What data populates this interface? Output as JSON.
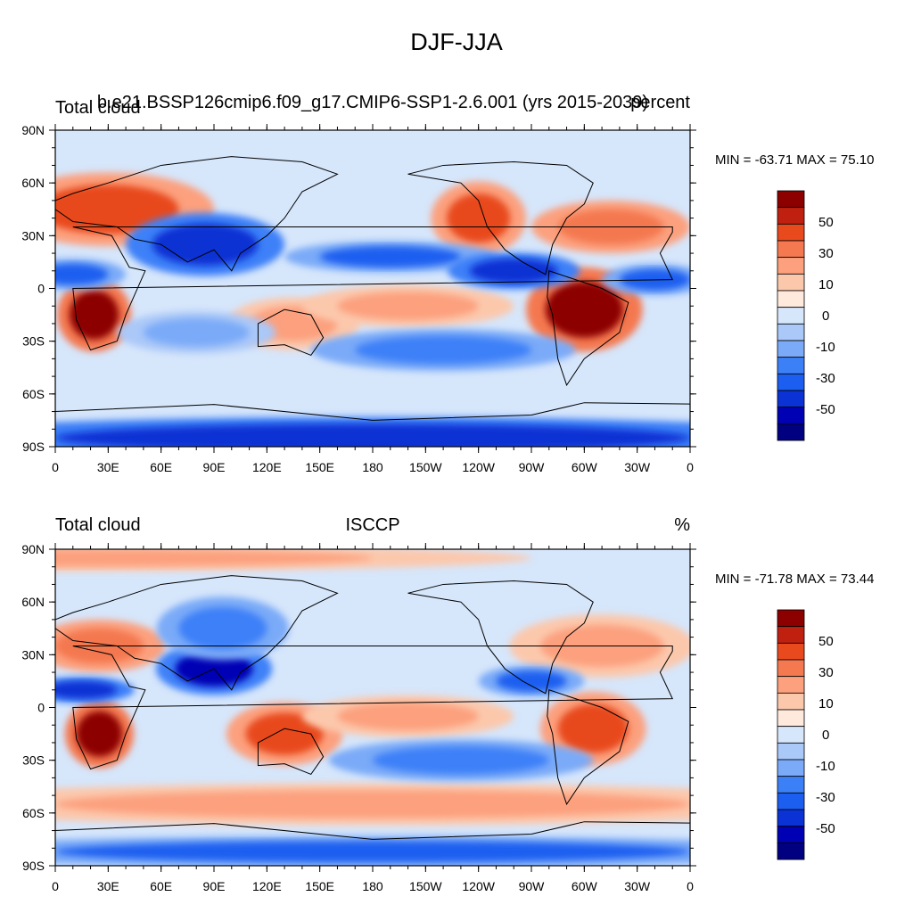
{
  "main_title": "DJF-JJA",
  "colors": {
    "levels": [
      -60,
      -50,
      -40,
      -30,
      -20,
      -10,
      -5,
      0,
      5,
      10,
      20,
      30,
      40,
      50,
      60
    ],
    "fills": [
      "#000080",
      "#0000b4",
      "#0a32d4",
      "#1c5ef0",
      "#3c80f8",
      "#7aaaf8",
      "#aac8f8",
      "#d6e6fb",
      "#ffe8dc",
      "#fcc8ac",
      "#fca07e",
      "#f47850",
      "#e84a1e",
      "#c02010",
      "#8c0000"
    ]
  },
  "panels": [
    {
      "left_title": "Total cloud",
      "center_title": "b.e21.BSSP126cmip6.f09_g17.CMIP6-SSP1-2.6.001 (yrs 2015-2039)",
      "right_title": "percent",
      "minmax": "MIN = -63.71 MAX =  75.10",
      "colorbar_labels": [
        "50",
        "30",
        "10",
        "0",
        "-10",
        "-30",
        "-50"
      ]
    },
    {
      "left_title": "Total cloud",
      "center_title": "ISCCP",
      "right_title": "%",
      "minmax": "MIN = -71.78 MAX =  73.44",
      "colorbar_labels": [
        "50",
        "30",
        "10",
        "0",
        "-10",
        "-30",
        "-50"
      ]
    }
  ],
  "chart_data": [
    {
      "type": "heatmap",
      "title": "DJF-JJA",
      "field": "Total cloud",
      "units": "percent",
      "source": "b.e21.BSSP126cmip6.f09_g17.CMIP6-SSP1-2.6.001 (yrs 2015-2039)",
      "min": -63.71,
      "max": 75.1,
      "x_ticks": [
        "0",
        "30E",
        "60E",
        "90E",
        "120E",
        "150E",
        "180",
        "150W",
        "120W",
        "90W",
        "60W",
        "30W",
        "0"
      ],
      "y_ticks": [
        "90N",
        "60N",
        "30N",
        "0",
        "30S",
        "60S",
        "90S"
      ],
      "colorbar_levels": [
        -60,
        -50,
        -40,
        -30,
        -20,
        -10,
        -5,
        0,
        5,
        10,
        20,
        30,
        40,
        50,
        60
      ],
      "features": [
        {
          "lon": 30,
          "lat": 45,
          "value": 40,
          "w": 40,
          "h": 14
        },
        {
          "lon": 22,
          "lat": -15,
          "value": 60,
          "w": 14,
          "h": 14
        },
        {
          "lon": 300,
          "lat": -12,
          "value": 60,
          "w": 22,
          "h": 16
        },
        {
          "lon": 240,
          "lat": 40,
          "value": 40,
          "w": 18,
          "h": 14
        },
        {
          "lon": 315,
          "lat": 35,
          "value": 25,
          "w": 30,
          "h": 10
        },
        {
          "lon": 135,
          "lat": -20,
          "value": 20,
          "w": 25,
          "h": 10
        },
        {
          "lon": 200,
          "lat": -10,
          "value": 15,
          "w": 40,
          "h": 8
        },
        {
          "lon": 85,
          "lat": 25,
          "value": -40,
          "w": 30,
          "h": 12
        },
        {
          "lon": 190,
          "lat": 18,
          "value": -30,
          "w": 40,
          "h": 6
        },
        {
          "lon": 260,
          "lat": 10,
          "value": -40,
          "w": 25,
          "h": 7
        },
        {
          "lon": 10,
          "lat": 8,
          "value": -35,
          "w": 20,
          "h": 6
        },
        {
          "lon": 340,
          "lat": 5,
          "value": -30,
          "w": 20,
          "h": 6
        },
        {
          "lon": 180,
          "lat": -85,
          "value": -40,
          "w": 180,
          "h": 8
        },
        {
          "lon": 220,
          "lat": -35,
          "value": -20,
          "w": 50,
          "h": 8
        },
        {
          "lon": 80,
          "lat": -25,
          "value": -15,
          "w": 30,
          "h": 8
        }
      ]
    },
    {
      "type": "heatmap",
      "title": "DJF-JJA",
      "field": "Total cloud",
      "units": "%",
      "source": "ISCCP",
      "min": -71.78,
      "max": 73.44,
      "x_ticks": [
        "0",
        "30E",
        "60E",
        "90E",
        "120E",
        "150E",
        "180",
        "150W",
        "120W",
        "90W",
        "60W",
        "30W",
        "0"
      ],
      "y_ticks": [
        "90N",
        "60N",
        "30N",
        "0",
        "30S",
        "60S",
        "90S"
      ],
      "colorbar_levels": [
        -60,
        -50,
        -40,
        -30,
        -20,
        -10,
        -5,
        0,
        5,
        10,
        20,
        30,
        40,
        50,
        60
      ],
      "features": [
        {
          "lon": 25,
          "lat": 35,
          "value": 25,
          "w": 25,
          "h": 10
        },
        {
          "lon": 25,
          "lat": -15,
          "value": 60,
          "w": 13,
          "h": 13
        },
        {
          "lon": 305,
          "lat": -12,
          "value": 40,
          "w": 20,
          "h": 14
        },
        {
          "lon": 130,
          "lat": -15,
          "value": 35,
          "w": 22,
          "h": 12
        },
        {
          "lon": 310,
          "lat": 35,
          "value": 20,
          "w": 35,
          "h": 12
        },
        {
          "lon": 180,
          "lat": -55,
          "value": 15,
          "w": 180,
          "h": 8
        },
        {
          "lon": 90,
          "lat": 22,
          "value": -50,
          "w": 22,
          "h": 10
        },
        {
          "lon": 95,
          "lat": 45,
          "value": -20,
          "w": 25,
          "h": 12
        },
        {
          "lon": 270,
          "lat": 15,
          "value": -35,
          "w": 20,
          "h": 6
        },
        {
          "lon": 15,
          "lat": 10,
          "value": -40,
          "w": 20,
          "h": 5
        },
        {
          "lon": 180,
          "lat": -82,
          "value": -35,
          "w": 180,
          "h": 6
        },
        {
          "lon": 0,
          "lat": 85,
          "value": 20,
          "w": 180,
          "h": 5
        },
        {
          "lon": 200,
          "lat": -5,
          "value": 15,
          "w": 40,
          "h": 8
        },
        {
          "lon": 230,
          "lat": -30,
          "value": -20,
          "w": 50,
          "h": 8
        }
      ]
    }
  ]
}
